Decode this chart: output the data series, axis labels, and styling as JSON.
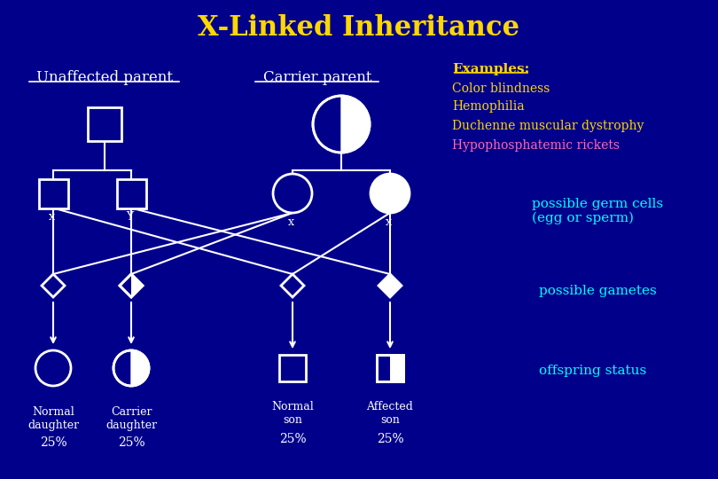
{
  "title": "X-Linked Inheritance",
  "title_color": "#FFD700",
  "bg_color": "#00008B",
  "white": "#FFFFFF",
  "cyan": "#00FFFF",
  "yellow": "#FFD700",
  "magenta": "#FF69B4",
  "examples_title": "Examples:",
  "examples": [
    "Color blindness",
    "Hemophilia",
    "Duchenne muscular dystrophy",
    "Hypophosphatemic rickets"
  ],
  "examples_colors": [
    "#FFD700",
    "#FFD700",
    "#FFD700",
    "#FF69B4"
  ],
  "label_unaffected": "Unaffected parent",
  "label_carrier": "Carrier parent",
  "label_germ": "possible germ cells\n(egg or sperm)",
  "label_gametes": "possible gametes",
  "label_offspring": "offspring status",
  "offspring_labels": [
    "Normal\ndaughter",
    "Carrier\ndaughter",
    "Normal\nson",
    "Affected\nson"
  ],
  "offspring_pcts": [
    "25%",
    "25%",
    "25%",
    "25%"
  ],
  "germ_x_labels": [
    "x",
    "Y",
    "x",
    "x"
  ]
}
